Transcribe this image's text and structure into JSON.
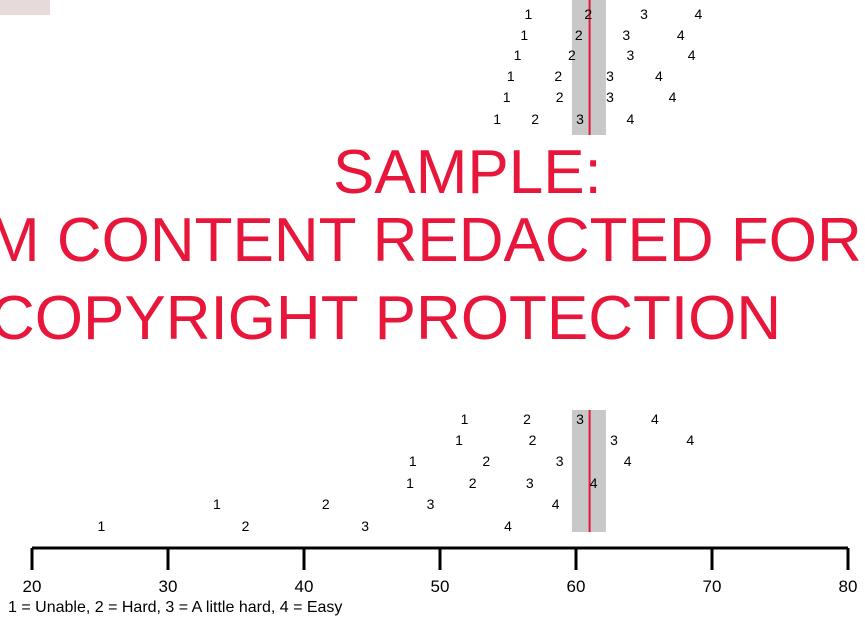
{
  "watermark": {
    "line1": "SAMPLE:",
    "line2": "M CONTENT REDACTED FOR",
    "line3": "COPYRIGHT PROTECTION"
  },
  "colors": {
    "watermark": "#e8163a",
    "band": "#c8c8c8",
    "marker": "#e8163a"
  },
  "chart_data": {
    "type": "scatter",
    "axis": {
      "min": 20,
      "max": 80,
      "ticks": [
        20,
        30,
        40,
        50,
        60,
        70,
        80
      ]
    },
    "legend": "1 = Unable, 2 = Hard, 3 = A little hard, 4 = Easy",
    "marker_value": 61,
    "band": [
      59.7,
      62.2
    ],
    "top_rows": [
      [
        56.5,
        60.9,
        65.0,
        69.0
      ],
      [
        56.2,
        60.2,
        63.7,
        67.7
      ],
      [
        55.7,
        59.7,
        64.0,
        68.5
      ],
      [
        55.2,
        58.7,
        62.5,
        66.1
      ],
      [
        54.9,
        58.8,
        62.5,
        67.1
      ],
      [
        54.2,
        57.0,
        60.3,
        64.0
      ]
    ],
    "bottom_rows": [
      [
        51.8,
        56.4,
        60.3,
        65.8
      ],
      [
        51.4,
        56.8,
        62.8,
        68.4
      ],
      [
        48.0,
        53.4,
        58.8,
        63.8
      ],
      [
        47.8,
        52.4,
        56.6,
        61.3
      ],
      [
        33.6,
        41.6,
        49.3,
        58.5
      ],
      [
        25.1,
        35.7,
        44.5,
        55.0
      ]
    ]
  }
}
